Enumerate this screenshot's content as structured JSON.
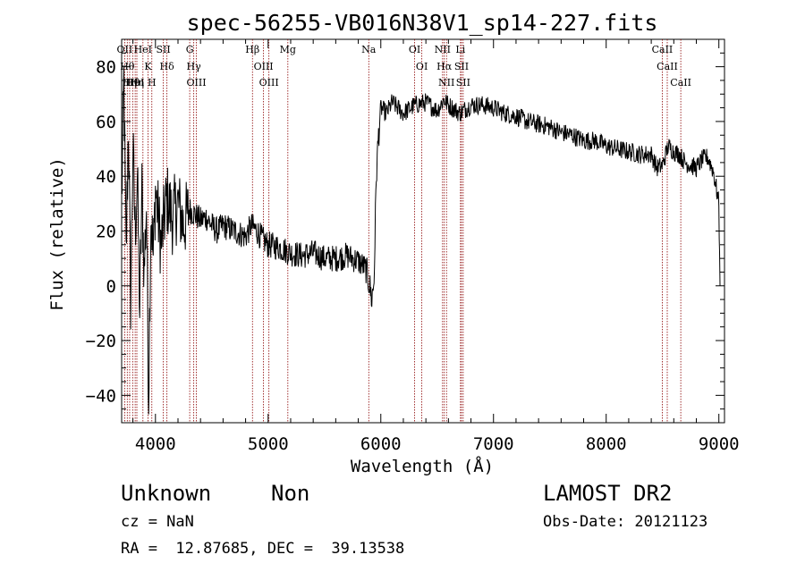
{
  "chart_data": {
    "type": "line",
    "title": "spec-56255-VB016N38V1_sp14-227.fits",
    "xlabel": "Wavelength (Å)",
    "ylabel": "Flux (relative)",
    "xlim": [
      3700,
      9050
    ],
    "ylim": [
      -50,
      90
    ],
    "xticks": [
      4000,
      5000,
      6000,
      7000,
      8000,
      9000
    ],
    "yticks": [
      -40,
      -20,
      0,
      20,
      40,
      60,
      80
    ],
    "grid": false,
    "series": [
      {
        "x": [
          3700,
          3720,
          3740,
          3760,
          3780,
          3800,
          3820,
          3840,
          3860,
          3880,
          3900,
          3920,
          3940,
          3960,
          3980,
          4000,
          4050,
          4100,
          4150,
          4200,
          4250,
          4300,
          4350,
          4400,
          4450,
          4500,
          4550,
          4600,
          4650,
          4700,
          4750,
          4800,
          4850,
          4900,
          4950,
          5000,
          5100,
          5200,
          5300,
          5400,
          5500,
          5600,
          5700,
          5800,
          5850,
          5880,
          5900,
          5920,
          5940,
          5960,
          5980,
          6000,
          6050,
          6100,
          6200,
          6300,
          6400,
          6500,
          6560,
          6600,
          6700,
          6800,
          6900,
          7000,
          7100,
          7200,
          7300,
          7400,
          7500,
          7600,
          7700,
          7800,
          7900,
          8000,
          8100,
          8200,
          8300,
          8400,
          8450,
          8500,
          8550,
          8600,
          8650,
          8700,
          8750,
          8800,
          8850,
          8900,
          8950,
          8980,
          9000,
          9010
        ],
        "y": [
          30,
          75,
          10,
          60,
          -5,
          50,
          20,
          40,
          -10,
          35,
          5,
          30,
          -40,
          28,
          10,
          35,
          15,
          32,
          25,
          30,
          22,
          28,
          26,
          24,
          25,
          22,
          20,
          22,
          21,
          20,
          19,
          18,
          22,
          20,
          17,
          15,
          14,
          12,
          11,
          12,
          10,
          10,
          11,
          9,
          7,
          5,
          0,
          -5,
          2,
          40,
          55,
          65,
          63,
          67,
          63,
          66,
          67,
          64,
          68,
          66,
          63,
          66,
          66,
          65,
          63,
          62,
          60,
          59,
          58,
          56,
          55,
          53,
          53,
          51,
          50,
          49,
          48,
          48,
          43,
          44,
          51,
          49,
          48,
          45,
          44,
          43,
          46,
          47,
          42,
          35,
          30,
          0
        ]
      }
    ],
    "lines": [
      {
        "x": 3727,
        "label": "OII"
      },
      {
        "x": 3750,
        "label": "Hθ"
      },
      {
        "x": 3771,
        "label": "Hη"
      },
      {
        "x": 3798,
        "label": "Hθ"
      },
      {
        "x": 3820,
        "label": "HeI"
      },
      {
        "x": 3835,
        "label": "Hη"
      },
      {
        "x": 3889,
        "label": "HeI"
      },
      {
        "x": 3934,
        "label": "K"
      },
      {
        "x": 3968,
        "label": "H"
      },
      {
        "x": 4070,
        "label": "SII"
      },
      {
        "x": 4102,
        "label": "Hδ"
      },
      {
        "x": 4304,
        "label": "G"
      },
      {
        "x": 4340,
        "label": "Hγ"
      },
      {
        "x": 4363,
        "label": "OIII"
      },
      {
        "x": 4861,
        "label": "Hβ"
      },
      {
        "x": 4959,
        "label": "OIII"
      },
      {
        "x": 5007,
        "label": "OIII"
      },
      {
        "x": 5175,
        "label": "Mg"
      },
      {
        "x": 5893,
        "label": "Na"
      },
      {
        "x": 6300,
        "label": "OI"
      },
      {
        "x": 6364,
        "label": "OI"
      },
      {
        "x": 6548,
        "label": "NII"
      },
      {
        "x": 6563,
        "label": "Hα"
      },
      {
        "x": 6583,
        "label": "NII"
      },
      {
        "x": 6707,
        "label": "Li"
      },
      {
        "x": 6716,
        "label": "SII"
      },
      {
        "x": 6731,
        "label": "SII"
      },
      {
        "x": 8498,
        "label": "CaII"
      },
      {
        "x": 8542,
        "label": "CaII"
      },
      {
        "x": 8662,
        "label": "CaII"
      }
    ]
  },
  "info": {
    "object_class": "Unknown",
    "subclass": "Non",
    "survey": "LAMOST DR2",
    "redshift": "cz = NaN",
    "obs_date": "Obs-Date: 20121123",
    "coords": "RA =  12.87685, DEC =  39.13538"
  }
}
